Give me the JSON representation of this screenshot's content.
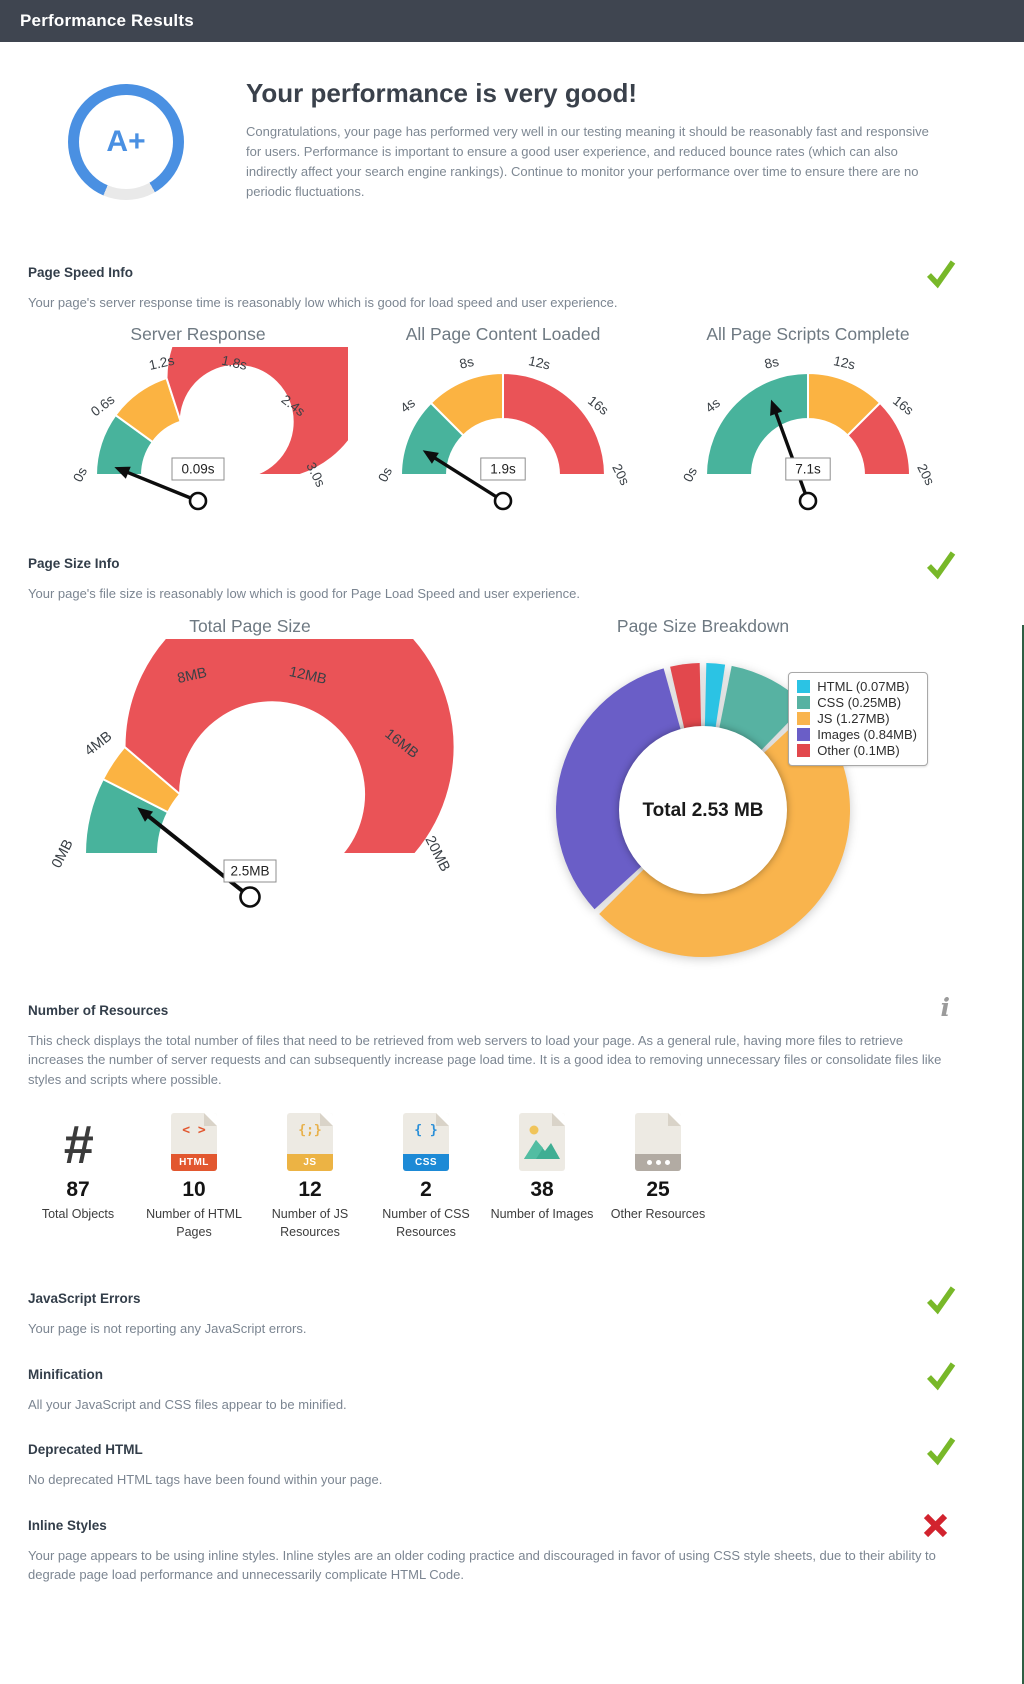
{
  "header": {
    "title": "Performance Results"
  },
  "hero": {
    "grade": "A+",
    "title": "Your performance is very good!",
    "body": "Congratulations, your page has performed very well in our testing meaning it should be reasonably fast and responsive for users. Performance is important to ensure a good user experience, and reduced bounce rates (which can also indirectly affect your search engine rankings). Continue to monitor your performance over time to ensure there are no periodic fluctuations.",
    "ring_color": "#4a90e2"
  },
  "sections": {
    "page_speed": {
      "title": "Page Speed Info",
      "status": "pass",
      "body": "Your page's server response time is reasonably low which is good for load speed and user experience."
    },
    "page_size": {
      "title": "Page Size Info",
      "status": "pass",
      "body": "Your page's file size is reasonably low which is good for Page Load Speed and user experience."
    },
    "resources": {
      "title": "Number of Resources",
      "body": "This check displays the total number of files that need to be retrieved from web servers to load your page. As a general rule, having more files to retrieve increases the number of server requests and can subsequently increase page load time. It is a good idea to removing unnecessary files or consolidate files like styles and scripts where possible."
    },
    "js_errors": {
      "title": "JavaScript Errors",
      "status": "pass",
      "body": "Your page is not reporting any JavaScript errors."
    },
    "minification": {
      "title": "Minification",
      "status": "pass",
      "body": "All your JavaScript and CSS files appear to be minified."
    },
    "deprecated_html": {
      "title": "Deprecated HTML",
      "status": "pass",
      "body": "No deprecated HTML tags have been found within your page."
    },
    "inline_styles": {
      "title": "Inline Styles",
      "status": "fail",
      "body": "Your page appears to be using inline styles. Inline styles are an older coding practice and discouraged in favor of using CSS style sheets, due to their ability to degrade page load performance and unnecessarily complicate HTML Code."
    }
  },
  "resources_counts": [
    {
      "icon": "hash-icon",
      "glyph": "#",
      "value": "87",
      "label": "Total Objects"
    },
    {
      "icon": "html-file-icon",
      "glyph": "< >",
      "badge": "HTML",
      "value": "10",
      "label": "Number of HTML Pages"
    },
    {
      "icon": "js-file-icon",
      "glyph": "{;}",
      "badge": "JS",
      "value": "12",
      "label": "Number of JS Resources"
    },
    {
      "icon": "css-file-icon",
      "glyph": "{ }",
      "badge": "CSS",
      "value": "2",
      "label": "Number of CSS Resources"
    },
    {
      "icon": "image-file-icon",
      "value": "38",
      "label": "Number of Images"
    },
    {
      "icon": "other-file-icon",
      "value": "25",
      "label": "Other Resources"
    }
  ],
  "chart_data": [
    {
      "type": "gauge",
      "title": "Server Response",
      "unit": "s",
      "min": 0,
      "max": 3,
      "ticks": [
        "0s",
        "0.6s",
        "1.2s",
        "1.8s",
        "2.4s",
        "3.0s"
      ],
      "zones": [
        {
          "from": 0,
          "to": 0.6,
          "color": "#48b39c"
        },
        {
          "from": 0.6,
          "to": 1.2,
          "color": "#fbb342"
        },
        {
          "from": 1.2,
          "to": 3,
          "color": "#ea5357"
        }
      ],
      "value": 0.09,
      "value_label": "0.09s"
    },
    {
      "type": "gauge",
      "title": "All Page Content Loaded",
      "unit": "s",
      "min": 0,
      "max": 20,
      "ticks": [
        "0s",
        "4s",
        "8s",
        "12s",
        "16s",
        "20s"
      ],
      "zones": [
        {
          "from": 0,
          "to": 5,
          "color": "#48b39c"
        },
        {
          "from": 5,
          "to": 10,
          "color": "#fbb342"
        },
        {
          "from": 10,
          "to": 20,
          "color": "#ea5357"
        }
      ],
      "value": 1.9,
      "value_label": "1.9s"
    },
    {
      "type": "gauge",
      "title": "All Page Scripts Complete",
      "unit": "s",
      "min": 0,
      "max": 20,
      "ticks": [
        "0s",
        "4s",
        "8s",
        "12s",
        "16s",
        "20s"
      ],
      "zones": [
        {
          "from": 0,
          "to": 10,
          "color": "#48b39c"
        },
        {
          "from": 10,
          "to": 15,
          "color": "#fbb342"
        },
        {
          "from": 15,
          "to": 20,
          "color": "#ea5357"
        }
      ],
      "value": 7.1,
      "value_label": "7.1s"
    },
    {
      "type": "gauge",
      "title": "Total Page Size",
      "unit": "MB",
      "min": 0,
      "max": 20,
      "ticks": [
        "0MB",
        "4MB",
        "8MB",
        "12MB",
        "16MB",
        "20MB"
      ],
      "zones": [
        {
          "from": 0,
          "to": 3,
          "color": "#48b39c"
        },
        {
          "from": 3,
          "to": 4.5,
          "color": "#fbb342"
        },
        {
          "from": 4.5,
          "to": 20,
          "color": "#ea5357"
        }
      ],
      "value": 2.5,
      "value_label": "2.5MB"
    },
    {
      "type": "donut",
      "title": "Page Size Breakdown",
      "center_label": "Total 2.53 MB",
      "total_mb": 2.53,
      "legend_position": "top-right",
      "slices": [
        {
          "label": "HTML",
          "value": 0.07,
          "legend": "HTML (0.07MB)",
          "color": "#2bc3e4"
        },
        {
          "label": "CSS",
          "value": 0.25,
          "legend": "CSS (0.25MB)",
          "color": "#57b2a2"
        },
        {
          "label": "JS",
          "value": 1.27,
          "legend": "JS (1.27MB)",
          "color": "#f9b44d"
        },
        {
          "label": "Images",
          "value": 0.84,
          "legend": "Images (0.84MB)",
          "color": "#6a5ec7"
        },
        {
          "label": "Other",
          "value": 0.1,
          "legend": "Other (0.1MB)",
          "color": "#e2484d"
        }
      ]
    }
  ],
  "colors": {
    "header_bg": "#3f4550",
    "check_green": "#78b829",
    "cross_red": "#d2232e",
    "accent_blue": "#4a90e2",
    "zone_green": "#48b39c",
    "zone_yellow": "#fbb342",
    "zone_red": "#ea5357"
  }
}
